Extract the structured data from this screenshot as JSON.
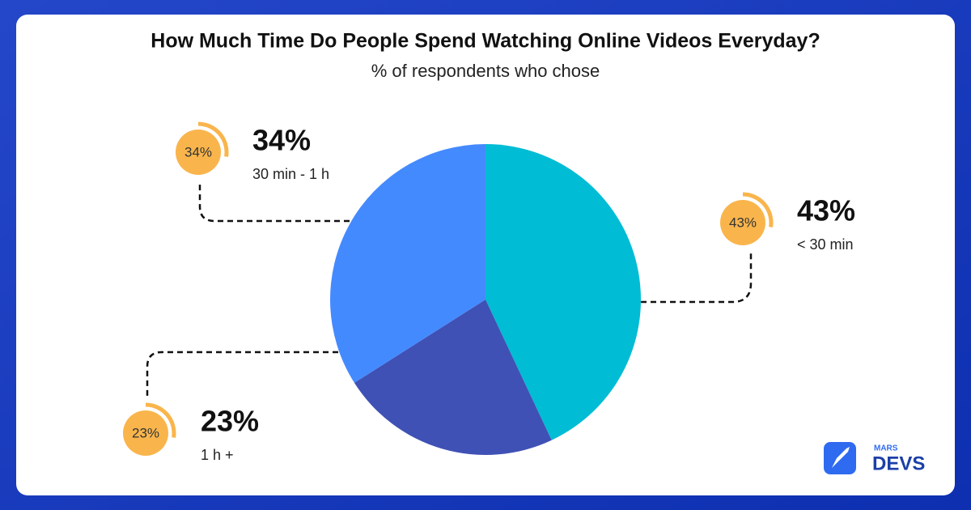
{
  "chart_data": {
    "type": "pie",
    "title": "How Much Time Do People Spend Watching Online Videos Everyday?",
    "subtitle": "% of respondents who chose",
    "categories": [
      "< 30 min",
      "1 h +",
      "30 min - 1 h"
    ],
    "values": [
      43,
      23,
      34
    ],
    "value_labels": [
      "43%",
      "23%",
      "34%"
    ],
    "colors": [
      "#00bcd4",
      "#3f51b5",
      "#448aff"
    ]
  },
  "logo": {
    "small": "MARS",
    "large": "DEVS"
  }
}
